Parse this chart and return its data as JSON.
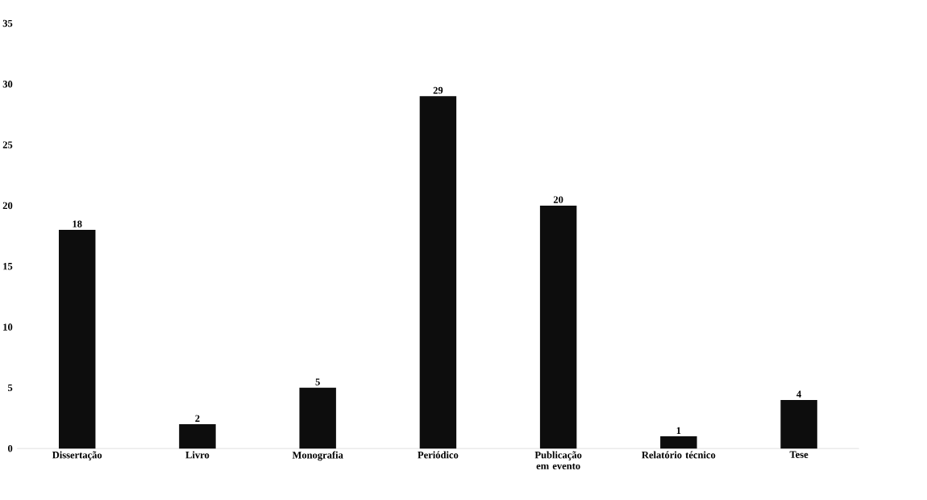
{
  "chart_data": {
    "type": "bar",
    "categories": [
      "Dissertação",
      "Livro",
      "Monografia",
      "Periódico",
      "Publicação em evento",
      "Relatório técnico",
      "Tese"
    ],
    "values": [
      18,
      2,
      5,
      29,
      20,
      1,
      4
    ],
    "color": "#0d0d0d",
    "ylim": [
      0,
      35
    ],
    "yticks": [
      0,
      5,
      10,
      15,
      20,
      25,
      30,
      35
    ],
    "data_labels": true
  }
}
